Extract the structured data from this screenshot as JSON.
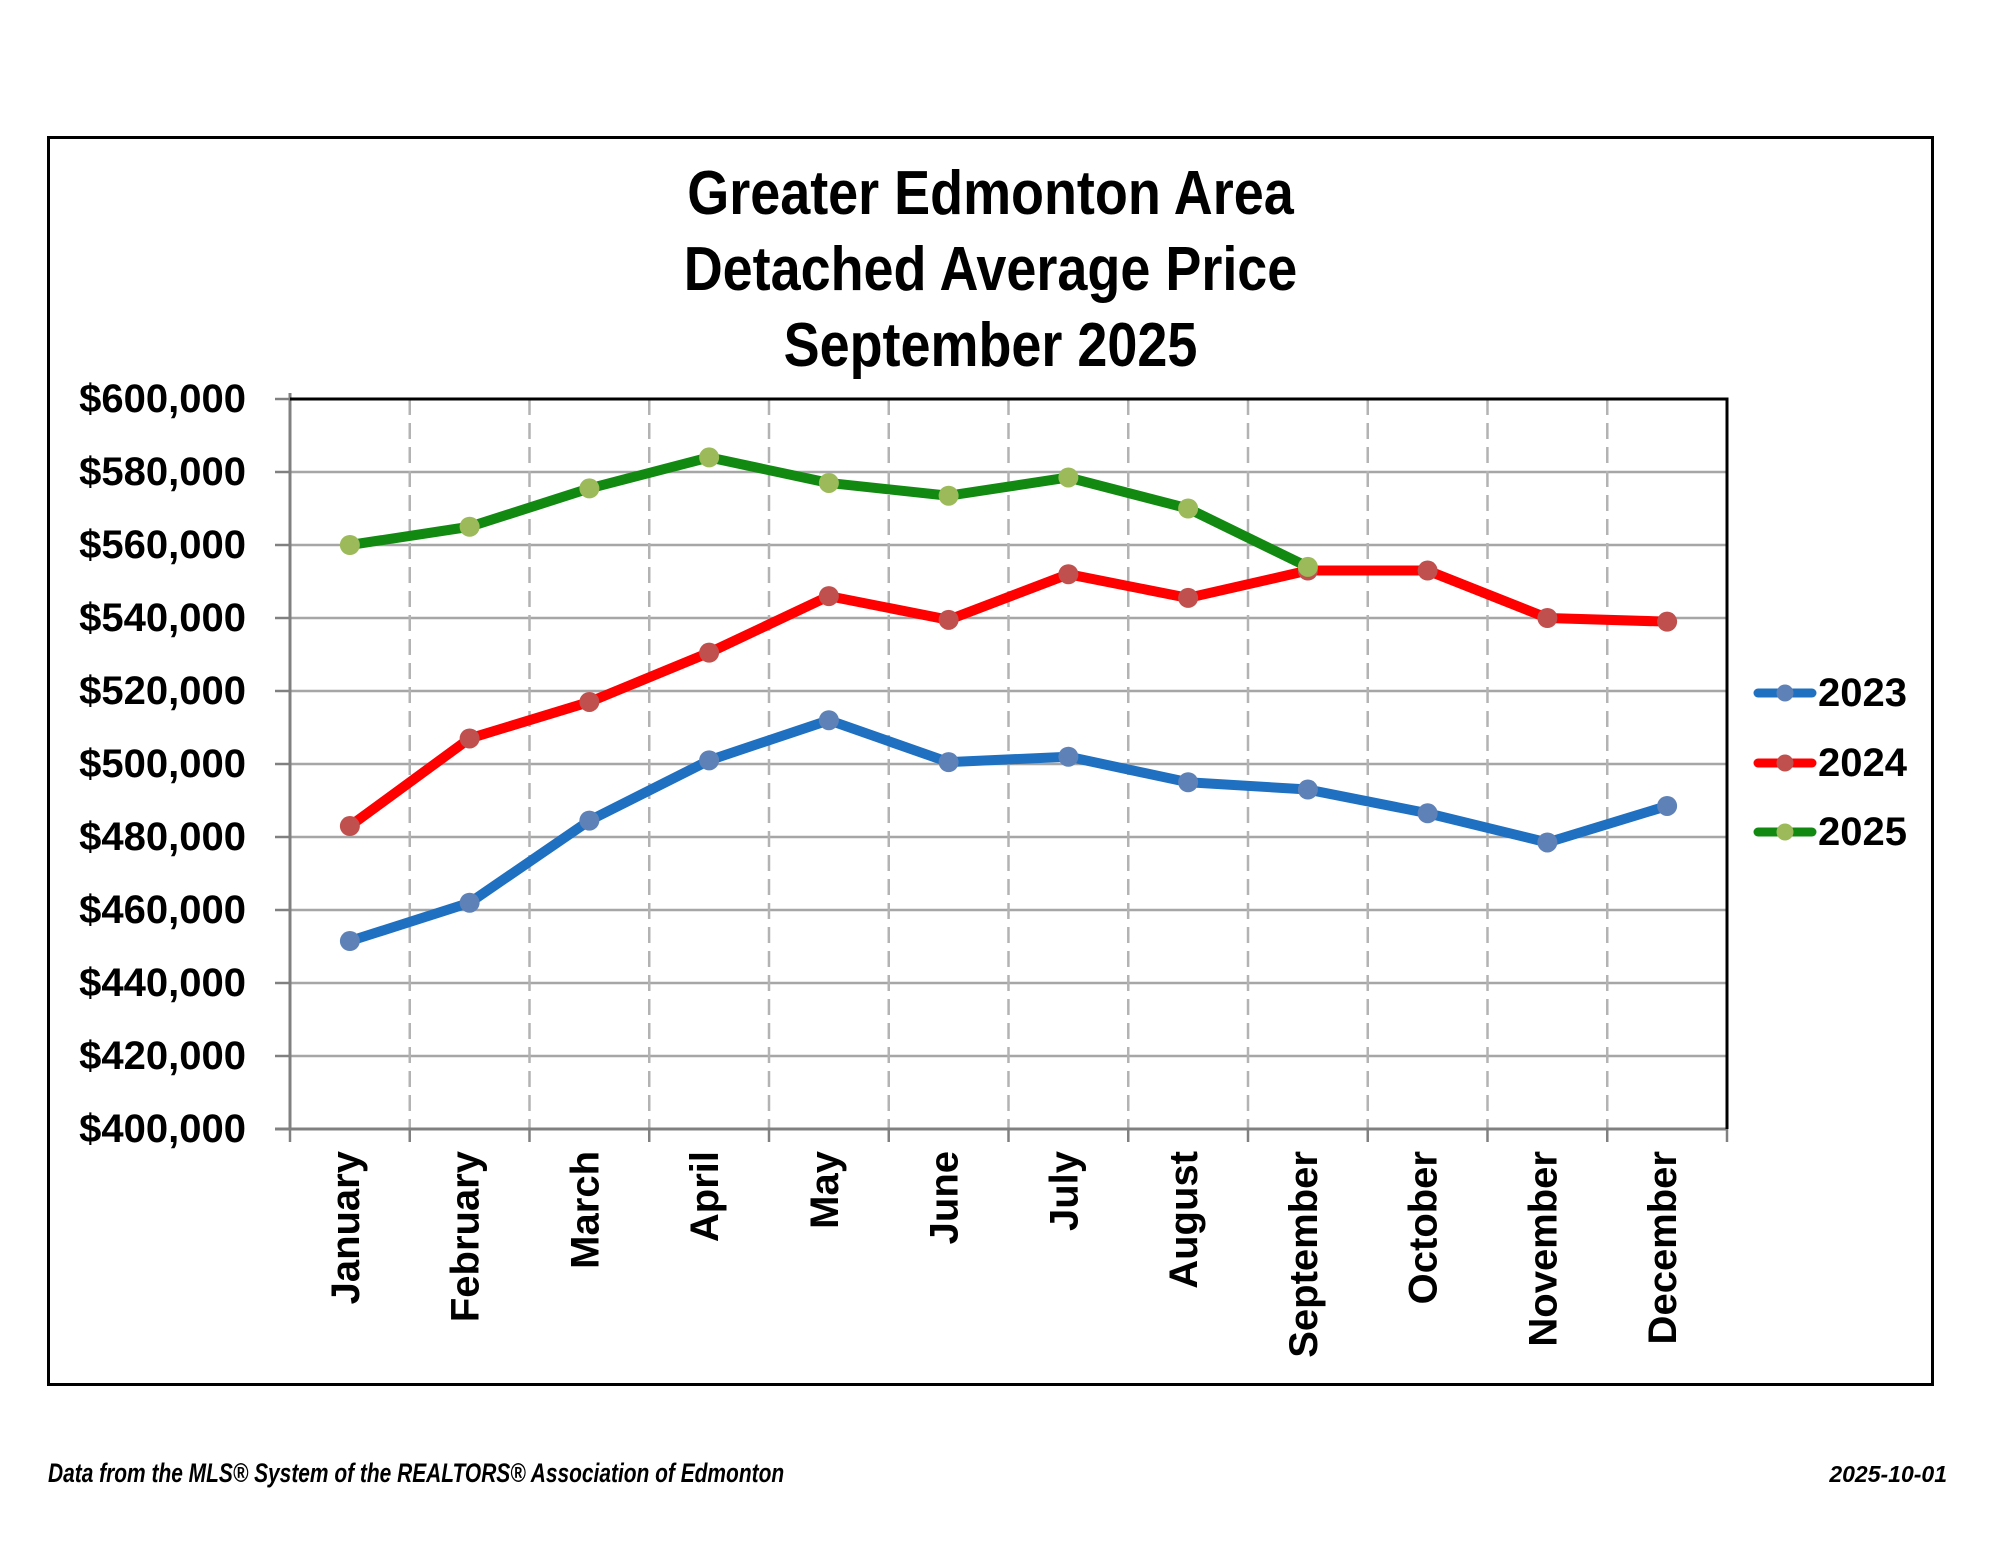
{
  "chart_data": {
    "type": "line",
    "title_lines": [
      "Greater Edmonton Area",
      "Detached Average Price",
      "September 2025"
    ],
    "categories": [
      "January",
      "February",
      "March",
      "April",
      "May",
      "June",
      "July",
      "August",
      "September",
      "October",
      "November",
      "December"
    ],
    "series": [
      {
        "name": "2023",
        "line_color": "#1F70C1",
        "marker_color": "#5E82B8",
        "values": [
          451500,
          462000,
          484500,
          501000,
          512000,
          500500,
          502000,
          495000,
          493000,
          486500,
          478500,
          488500
        ]
      },
      {
        "name": "2024",
        "line_color": "#FE0000",
        "marker_color": "#C0504D",
        "values": [
          483000,
          507000,
          517000,
          530500,
          546000,
          539500,
          552000,
          545500,
          553000,
          553000,
          540000,
          539000
        ]
      },
      {
        "name": "2025",
        "line_color": "#128A12",
        "marker_color": "#9CBA59",
        "values": [
          560000,
          565000,
          575500,
          584000,
          577000,
          573500,
          578500,
          570000,
          554000
        ]
      }
    ],
    "y_axis": {
      "min": 400000,
      "max": 600000,
      "step": 20000,
      "tick_labels": [
        "$600,000",
        "$580,000",
        "$560,000",
        "$540,000",
        "$520,000",
        "$500,000",
        "$480,000",
        "$460,000",
        "$440,000",
        "$420,000",
        "$400,000"
      ]
    },
    "legend_position": "right",
    "grid": {
      "h_gridline_color": "#A6A6A6",
      "v_gridline_color": "#B3B3B3",
      "v_gridline_dashed": true,
      "axis_color": "#808080",
      "plot_border_color": "#000000"
    }
  },
  "footer": {
    "source": "Data from the MLS® System of the REALTORS® Association of Edmonton",
    "date": "2025-10-01"
  }
}
